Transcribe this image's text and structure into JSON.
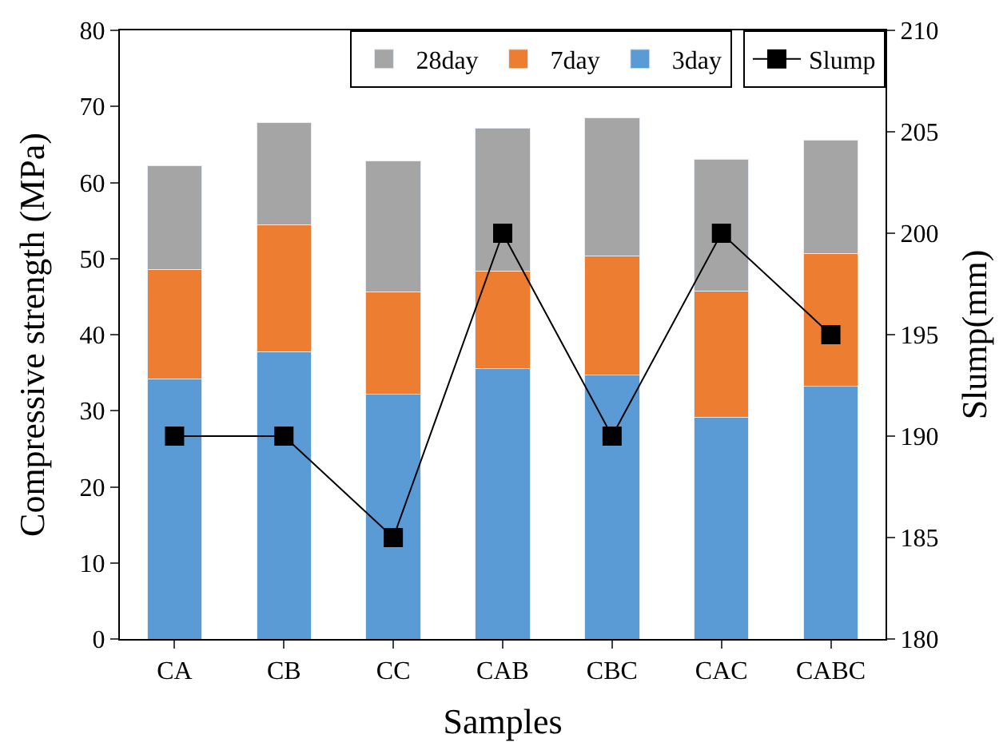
{
  "chart_data": {
    "type": "bar",
    "stacked": true,
    "xlabel": "Samples",
    "ylabel": "Compressive strength (MPa)",
    "y2label": "Slump(mm)",
    "categories": [
      "CA",
      "CB",
      "CC",
      "CAB",
      "CBC",
      "CAC",
      "CABC"
    ],
    "series": [
      {
        "name": "3day",
        "color": "#5b9bd5",
        "values": [
          34.2,
          37.7,
          32.2,
          35.5,
          34.7,
          29.1,
          33.2
        ]
      },
      {
        "name": "7day",
        "color": "#ed7d31",
        "values": [
          14.4,
          16.7,
          13.4,
          12.9,
          15.6,
          16.6,
          17.5
        ]
      },
      {
        "name": "28day",
        "color": "#a5a5a5",
        "values": [
          13.6,
          13.5,
          17.2,
          18.7,
          18.2,
          17.3,
          14.9
        ]
      },
      {
        "name": "Slump",
        "type": "line",
        "axis": "y2",
        "color": "#000000",
        "marker": "square",
        "line_style": "solid",
        "values": [
          190,
          190,
          185,
          200,
          190,
          200,
          195
        ]
      }
    ],
    "ylim": [
      0,
      80
    ],
    "yticks": [
      0,
      10,
      20,
      30,
      40,
      50,
      60,
      70,
      80
    ],
    "y2lim": [
      180,
      210
    ],
    "y2ticks": [
      180,
      185,
      190,
      195,
      200,
      205,
      210
    ],
    "legend": "top right"
  }
}
